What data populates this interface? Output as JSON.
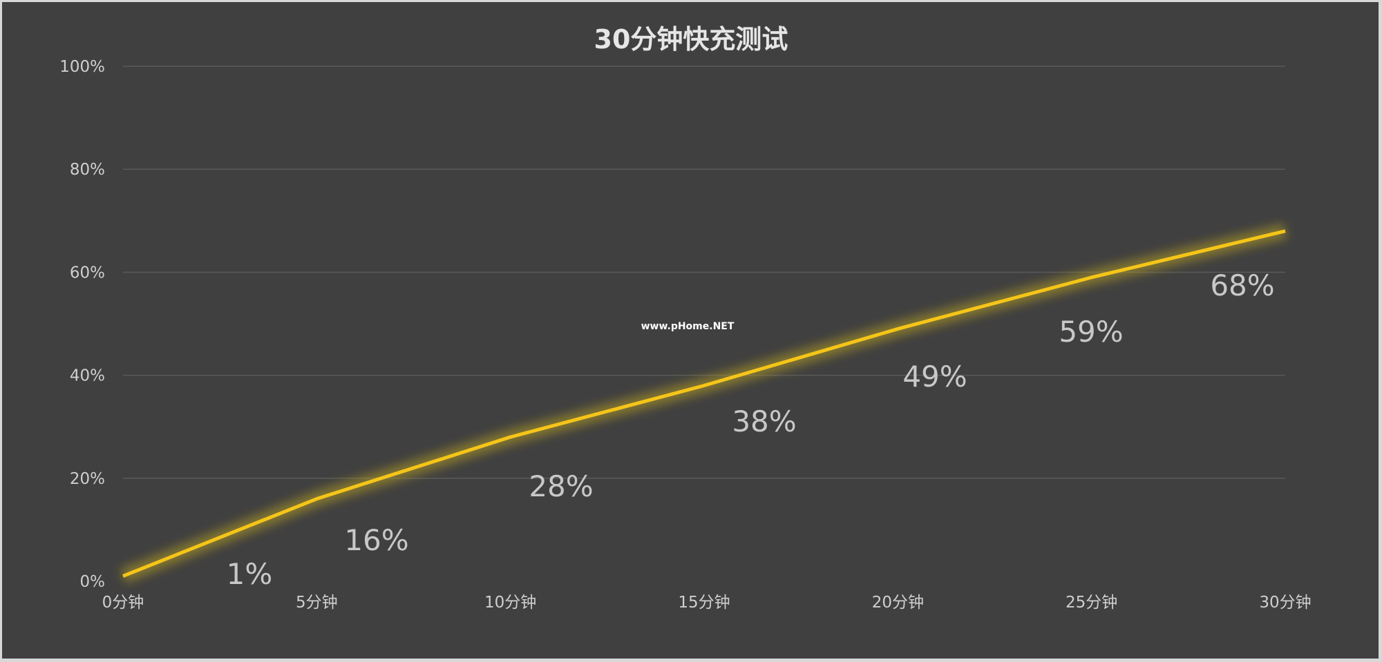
{
  "chart_data": {
    "type": "line",
    "title": "30分钟快充测试",
    "x": [
      "0分钟",
      "5分钟",
      "10分钟",
      "15分钟",
      "20分钟",
      "25分钟",
      "30分钟"
    ],
    "series": [
      {
        "values": [
          1,
          16,
          28,
          38,
          49,
          59,
          68
        ],
        "color": "#f5c518"
      }
    ],
    "data_labels": [
      "1%",
      "16%",
      "28%",
      "38%",
      "49%",
      "59%",
      "68%"
    ],
    "yticks": [
      "0%",
      "20%",
      "40%",
      "60%",
      "80%",
      "100%"
    ],
    "ylim": [
      0,
      100
    ],
    "grid": true,
    "legend": "none",
    "background": "#404040"
  },
  "watermark": "www.pHome.NET"
}
